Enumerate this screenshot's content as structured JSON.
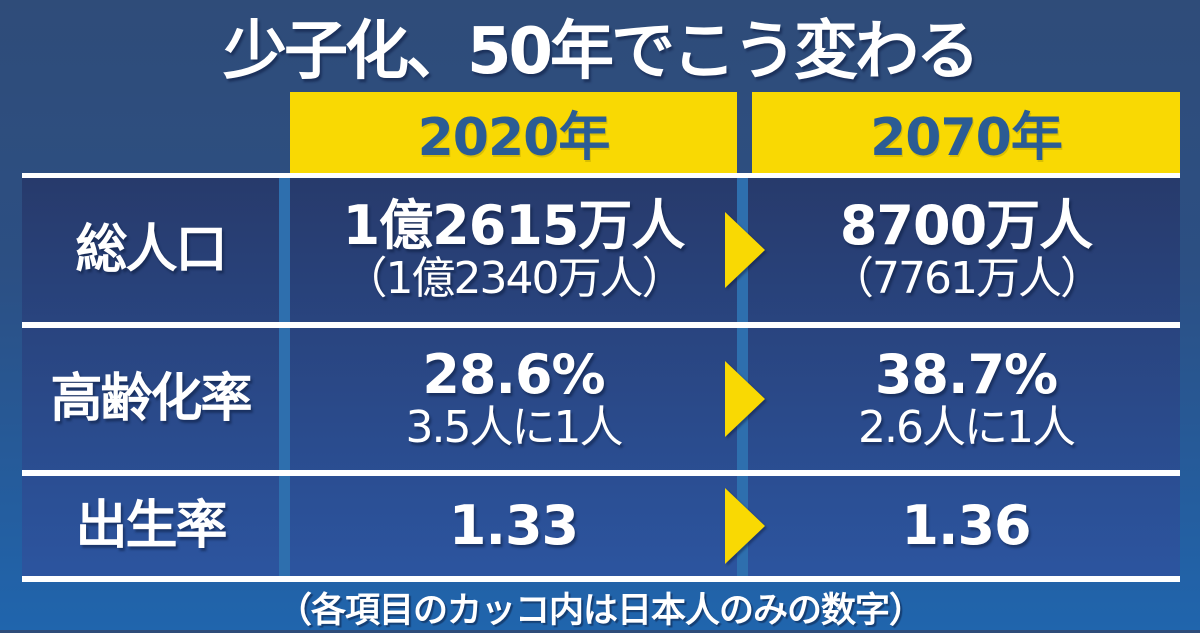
{
  "title": "少子化、50年でこう変わる",
  "footnote": "（各項目のカッコ内は日本人のみの数字）",
  "colors": {
    "background_top": "#2f4c79",
    "background_bottom": "#2065ad",
    "cell_gradient_top": "#273a6b",
    "cell_gradient_bottom": "#2c55a0",
    "accent_yellow": "#f9d903",
    "header_text_blue": "#2b5c94",
    "divider_blue": "#2e6fae",
    "text_white": "#ffffff"
  },
  "table": {
    "columns": [
      {
        "label": "2020年"
      },
      {
        "label": "2070年"
      }
    ],
    "rows": [
      {
        "label": "総人口",
        "cells": [
          {
            "main": "1億2615万人",
            "sub": "（1億2340万人）"
          },
          {
            "main": "8700万人",
            "sub": "（7761万人）"
          }
        ]
      },
      {
        "label": "高齢化率",
        "cells": [
          {
            "main": "28.6%",
            "sub": "3.5人に1人"
          },
          {
            "main": "38.7%",
            "sub": "2.6人に1人"
          }
        ]
      },
      {
        "label": "出生率",
        "cells": [
          {
            "main": "1.33",
            "sub": ""
          },
          {
            "main": "1.36",
            "sub": ""
          }
        ]
      }
    ]
  },
  "chart_data": {
    "type": "table",
    "title": "少子化、50年でこう変わる",
    "columns": [
      "",
      "2020年",
      "2070年"
    ],
    "rows": [
      [
        "総人口",
        "1億2615万人（1億2340万人）",
        "8700万人（7761万人）"
      ],
      [
        "高齢化率",
        "28.6%／3.5人に1人",
        "38.7%／2.6人に1人"
      ],
      [
        "出生率",
        "1.33",
        "1.36"
      ]
    ],
    "footnote": "（各項目のカッコ内は日本人のみの数字）"
  }
}
